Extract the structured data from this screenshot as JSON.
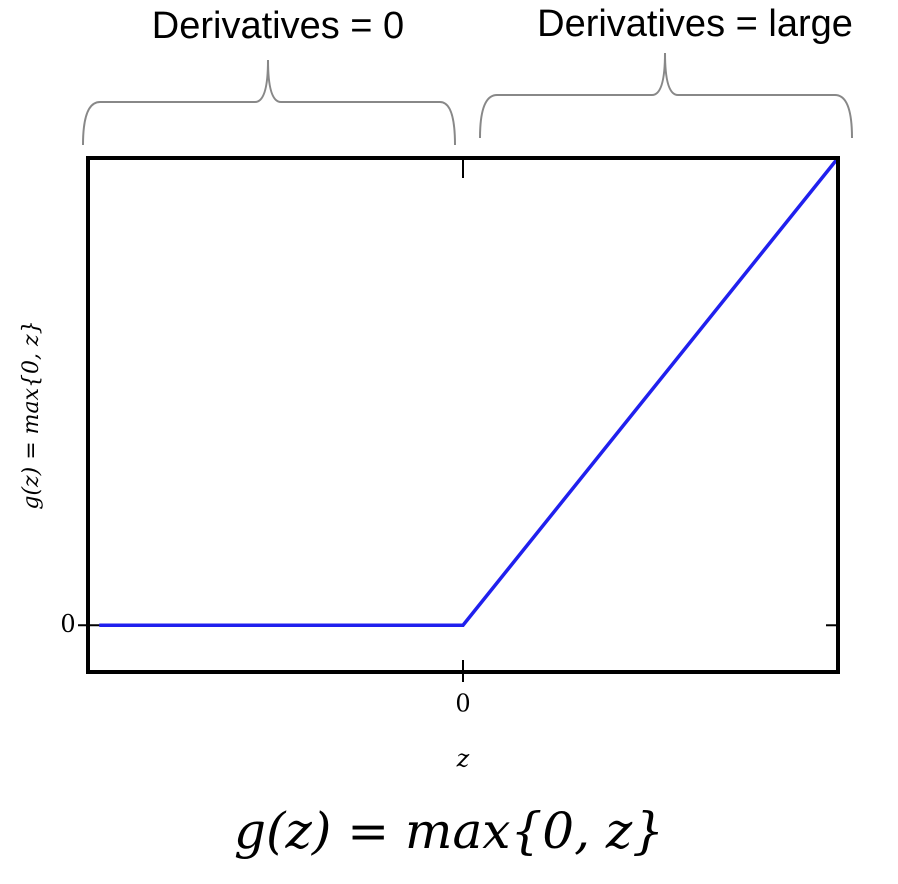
{
  "chart_data": {
    "type": "line",
    "annotations": [
      "Derivatives = 0",
      "Derivatives = large"
    ],
    "x": [
      -0.97,
      0,
      1
    ],
    "values": [
      0,
      0,
      1
    ],
    "color": "#2020ee",
    "xlim": [
      -1,
      1
    ],
    "ylim": [
      -0.1,
      1
    ],
    "xticks": [
      0
    ],
    "yticks": [
      0
    ],
    "xlabel": "z",
    "ylabel": "g(z) = max{0, z}",
    "caption": "g(z) = max{0, z}"
  }
}
